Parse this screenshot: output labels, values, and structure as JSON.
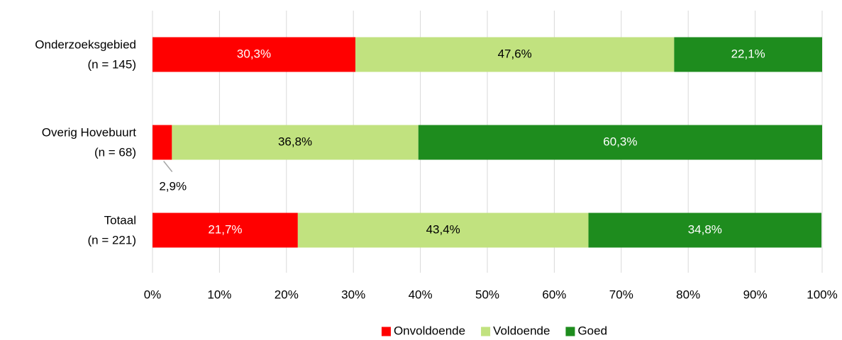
{
  "chart_data": {
    "type": "stacked_barh",
    "categories": [
      [
        "Onderzoeksgebied",
        "(n = 145)"
      ],
      [
        "Overig Hovebuurt",
        "(n = 68)"
      ],
      [
        "Totaal",
        "(n = 221)"
      ]
    ],
    "series": [
      {
        "name": "Onvoldoende",
        "color": "#ff0000",
        "label_color": "#ffffff",
        "values": [
          30.3,
          2.9,
          21.7
        ],
        "value_labels": [
          "30,3%",
          "2,9%",
          "21,7%"
        ]
      },
      {
        "name": "Voldoende",
        "color": "#c1e27f",
        "label_color": "#000000",
        "values": [
          47.6,
          36.8,
          43.4
        ],
        "value_labels": [
          "47,6%",
          "36,8%",
          "43,4%"
        ]
      },
      {
        "name": "Goed",
        "color": "#1e8c1e",
        "label_color": "#ffffff",
        "values": [
          22.1,
          60.3,
          34.8
        ],
        "value_labels": [
          "22,1%",
          "60,3%",
          "34,8%"
        ]
      }
    ],
    "xlim": [
      0,
      100
    ],
    "xticks": [
      {
        "value": 0,
        "label": "0%"
      },
      {
        "value": 10,
        "label": "10%"
      },
      {
        "value": 20,
        "label": "20%"
      },
      {
        "value": 30,
        "label": "30%"
      },
      {
        "value": 40,
        "label": "40%"
      },
      {
        "value": 50,
        "label": "50%"
      },
      {
        "value": 60,
        "label": "60%"
      },
      {
        "value": 70,
        "label": "70%"
      },
      {
        "value": 80,
        "label": "80%"
      },
      {
        "value": 90,
        "label": "90%"
      },
      {
        "value": 100,
        "label": "100%"
      }
    ],
    "grid": true,
    "legend": "bottom"
  }
}
